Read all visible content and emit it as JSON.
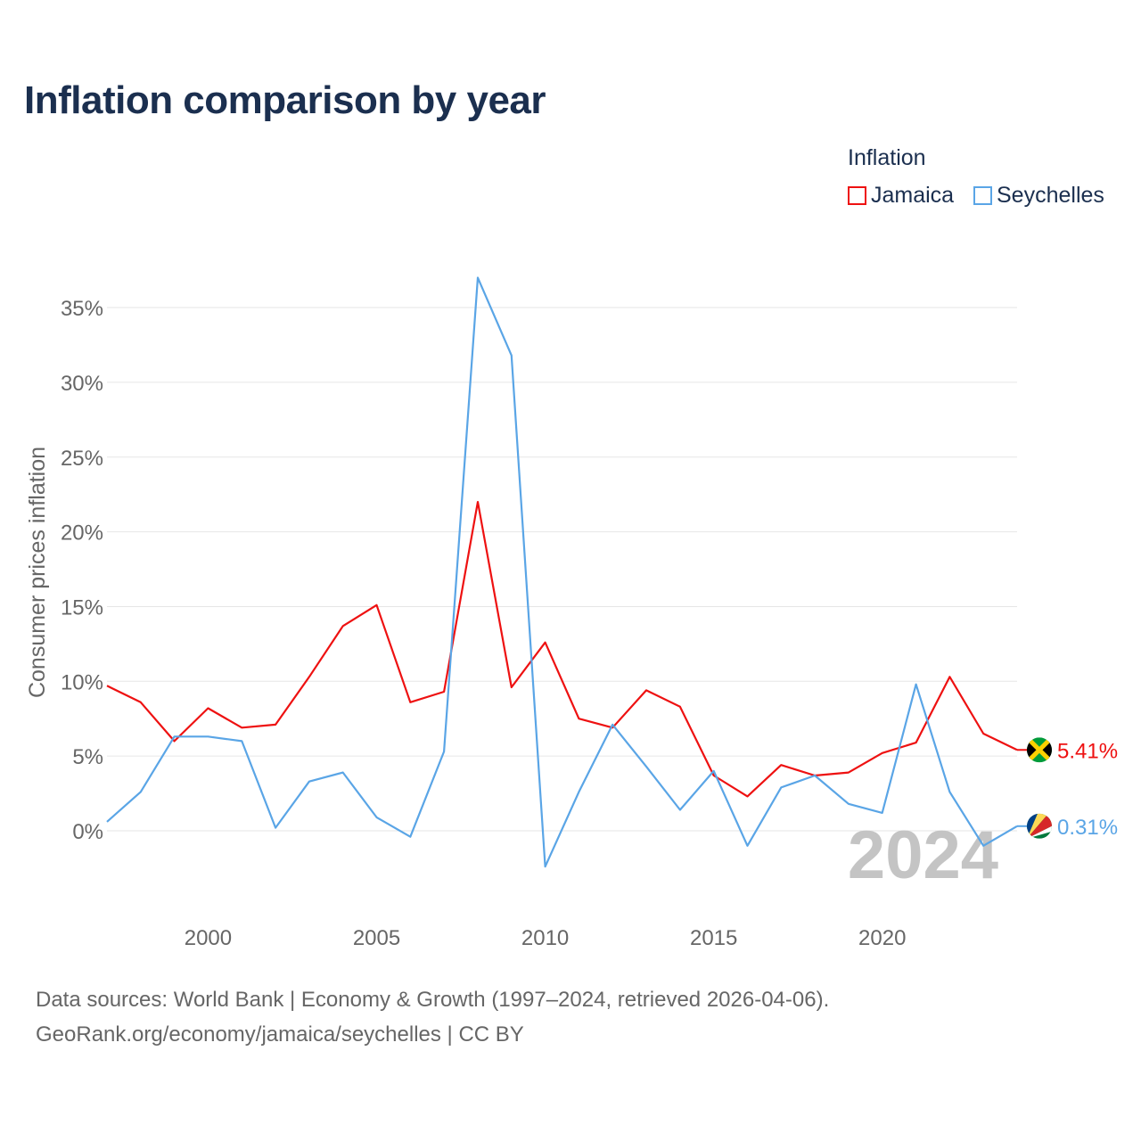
{
  "chart_data": {
    "type": "line",
    "title": "Inflation comparison by year",
    "xlabel": "",
    "ylabel": "Consumer prices inflation",
    "legend_title": "Inflation",
    "legend_position": "top-right",
    "watermark_year": "2024",
    "xlim": [
      1997,
      2024
    ],
    "ylim": [
      -5,
      37
    ],
    "x_ticks": [
      2000,
      2005,
      2010,
      2015,
      2020
    ],
    "y_ticks": [
      0,
      5,
      10,
      15,
      20,
      25,
      30,
      35
    ],
    "y_tick_labels": [
      "0%",
      "5%",
      "10%",
      "15%",
      "20%",
      "25%",
      "30%",
      "35%"
    ],
    "grid": "horizontal",
    "x": [
      1997,
      1998,
      1999,
      2000,
      2001,
      2002,
      2003,
      2004,
      2005,
      2006,
      2007,
      2008,
      2009,
      2010,
      2011,
      2012,
      2013,
      2014,
      2015,
      2016,
      2017,
      2018,
      2019,
      2020,
      2021,
      2022,
      2023,
      2024
    ],
    "series": [
      {
        "name": "Jamaica",
        "color": "#ee1111",
        "end_label": "5.41%",
        "flag_icon": "jamaica-flag-icon",
        "values": [
          9.7,
          8.6,
          6.0,
          8.2,
          6.9,
          7.1,
          10.3,
          13.7,
          15.1,
          8.6,
          9.3,
          22.0,
          9.6,
          12.6,
          7.5,
          6.9,
          9.4,
          8.3,
          3.7,
          2.3,
          4.4,
          3.7,
          3.9,
          5.2,
          5.9,
          10.3,
          6.5,
          5.41
        ]
      },
      {
        "name": "Seychelles",
        "color": "#5aa5e6",
        "end_label": "0.31%",
        "flag_icon": "seychelles-flag-icon",
        "values": [
          0.6,
          2.6,
          6.3,
          6.3,
          6.0,
          0.2,
          3.3,
          3.9,
          0.9,
          -0.4,
          5.3,
          37.0,
          31.8,
          -2.4,
          2.6,
          7.1,
          4.3,
          1.4,
          4.0,
          -1.0,
          2.9,
          3.7,
          1.8,
          1.2,
          9.8,
          2.6,
          -1.0,
          0.31
        ]
      }
    ]
  },
  "footer": {
    "source_line1": "Data sources: World Bank | Economy & Growth (1997–2024, retrieved 2026-04-06).",
    "source_line2": "GeoRank.org/economy/jamaica/seychelles | CC BY"
  }
}
